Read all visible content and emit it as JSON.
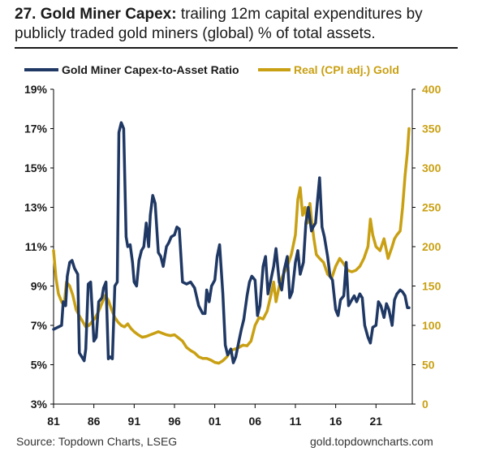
{
  "title": {
    "bold": "27. Gold Miner Capex:",
    "rest": " trailing 12m capital expenditures by publicly traded gold miners (global) % of total assets."
  },
  "footer": {
    "source": "Source: Topdown Charts, LSEG",
    "website": "gold.topdowncharts.com"
  },
  "colors": {
    "capex": "#1f3864",
    "gold": "#c9a013",
    "axis": "#000000"
  },
  "chart_data": {
    "type": "line",
    "x_ticks": [
      "81",
      "86",
      "91",
      "96",
      "01",
      "06",
      "11",
      "16",
      "21"
    ],
    "x_range": [
      1981,
      2025.5
    ],
    "y_left": {
      "min": 3,
      "max": 19,
      "ticks": [
        "3%",
        "5%",
        "7%",
        "9%",
        "11%",
        "13%",
        "15%",
        "17%",
        "19%"
      ]
    },
    "y_right": {
      "min": 0,
      "max": 400,
      "ticks": [
        "0",
        "50",
        "100",
        "150",
        "200",
        "250",
        "300",
        "350",
        "400"
      ]
    },
    "grid": false,
    "legend_position": "top",
    "series": [
      {
        "name": "Gold Miner Capex-to-Asset Ratio",
        "axis": "left",
        "x": [
          1981.0,
          1981.5,
          1982.0,
          1982.2,
          1982.5,
          1982.7,
          1983.0,
          1983.3,
          1983.6,
          1984.0,
          1984.2,
          1984.5,
          1984.8,
          1985.0,
          1985.3,
          1985.6,
          1986.0,
          1986.3,
          1986.6,
          1987.0,
          1987.2,
          1987.5,
          1987.8,
          1988.0,
          1988.3,
          1988.6,
          1988.9,
          1989.1,
          1989.4,
          1989.7,
          1990.0,
          1990.2,
          1990.5,
          1990.8,
          1991.0,
          1991.3,
          1991.6,
          1991.9,
          1992.2,
          1992.5,
          1992.8,
          1993.0,
          1993.3,
          1993.6,
          1994.0,
          1994.3,
          1994.6,
          1995.0,
          1995.3,
          1995.6,
          1996.0,
          1996.3,
          1996.6,
          1997.0,
          1997.5,
          1998.0,
          1998.5,
          1999.0,
          1999.5,
          1999.8,
          2000.0,
          2000.3,
          2000.6,
          2001.0,
          2001.3,
          2001.6,
          2002.0,
          2002.3,
          2002.6,
          2003.0,
          2003.3,
          2003.6,
          2004.0,
          2004.3,
          2004.6,
          2005.0,
          2005.3,
          2005.6,
          2006.0,
          2006.3,
          2006.6,
          2007.0,
          2007.3,
          2007.6,
          2008.0,
          2008.3,
          2008.6,
          2009.0,
          2009.3,
          2009.6,
          2010.0,
          2010.3,
          2010.6,
          2011.0,
          2011.3,
          2011.6,
          2012.0,
          2012.3,
          2012.6,
          2013.0,
          2013.2,
          2013.5,
          2013.8,
          2014.0,
          2014.3,
          2014.6,
          2015.0,
          2015.3,
          2015.6,
          2016.0,
          2016.3,
          2016.6,
          2017.0,
          2017.3,
          2017.6,
          2018.0,
          2018.3,
          2018.6,
          2019.0,
          2019.3,
          2019.6,
          2020.0,
          2020.3,
          2020.6,
          2021.0,
          2021.3,
          2021.6,
          2022.0,
          2022.3,
          2022.6,
          2023.0,
          2023.3,
          2023.6,
          2024.0,
          2024.3,
          2024.6,
          2024.9,
          2025.1
        ],
        "values": [
          6.8,
          6.9,
          7.0,
          8.2,
          8.0,
          9.5,
          10.2,
          10.3,
          9.9,
          9.6,
          5.6,
          5.4,
          5.2,
          5.8,
          9.1,
          9.2,
          6.2,
          6.4,
          8.2,
          8.4,
          8.9,
          9.2,
          5.3,
          5.4,
          5.3,
          9.0,
          9.2,
          16.8,
          17.3,
          17.0,
          11.5,
          11.0,
          11.1,
          10.2,
          9.2,
          9.0,
          10.3,
          10.8,
          11.0,
          12.2,
          11.0,
          12.6,
          13.6,
          13.2,
          10.7,
          10.5,
          10.0,
          11.0,
          11.2,
          11.5,
          11.6,
          12.0,
          11.9,
          9.2,
          9.1,
          9.2,
          8.9,
          8.0,
          7.6,
          7.6,
          8.8,
          8.2,
          9.0,
          9.3,
          10.5,
          11.1,
          8.6,
          6.0,
          5.5,
          5.8,
          5.1,
          5.4,
          6.2,
          6.8,
          7.3,
          8.5,
          9.2,
          9.5,
          9.3,
          7.5,
          8.0,
          10.0,
          10.5,
          8.6,
          9.4,
          10.0,
          10.9,
          9.2,
          8.8,
          9.8,
          10.5,
          8.4,
          8.7,
          10.2,
          10.8,
          9.6,
          10.2,
          12.2,
          13.0,
          11.8,
          12.0,
          12.2,
          13.6,
          14.5,
          12.0,
          11.5,
          10.5,
          9.5,
          9.3,
          7.8,
          7.5,
          8.3,
          8.5,
          10.2,
          8.0,
          8.3,
          8.5,
          8.2,
          8.6,
          8.4,
          7.0,
          6.4,
          6.1,
          6.9,
          7.0,
          8.2,
          8.0,
          7.4,
          8.1,
          7.8,
          7.0,
          8.3,
          8.6,
          8.8,
          8.7,
          8.5,
          7.9,
          7.9
        ],
        "color": "#1f3864"
      },
      {
        "name": "Real (CPI adj.) Gold",
        "axis": "right",
        "x": [
          1981.0,
          1981.3,
          1981.6,
          1982.0,
          1982.3,
          1982.6,
          1983.0,
          1983.4,
          1983.8,
          1984.2,
          1984.6,
          1985.0,
          1985.4,
          1985.8,
          1986.2,
          1986.6,
          1987.0,
          1987.4,
          1987.8,
          1988.2,
          1988.6,
          1989.0,
          1989.4,
          1989.8,
          1990.2,
          1990.6,
          1991.0,
          1991.5,
          1992.0,
          1992.5,
          1993.0,
          1993.5,
          1994.0,
          1994.5,
          1995.0,
          1995.5,
          1996.0,
          1996.5,
          1997.0,
          1997.5,
          1998.0,
          1998.5,
          1999.0,
          1999.5,
          2000.0,
          2000.5,
          2001.0,
          2001.5,
          2002.0,
          2002.5,
          2003.0,
          2003.5,
          2004.0,
          2004.5,
          2005.0,
          2005.5,
          2006.0,
          2006.5,
          2007.0,
          2007.5,
          2008.0,
          2008.3,
          2008.6,
          2009.0,
          2009.5,
          2010.0,
          2010.5,
          2011.0,
          2011.3,
          2011.6,
          2011.9,
          2012.2,
          2012.5,
          2012.8,
          2013.0,
          2013.3,
          2013.6,
          2014.0,
          2014.5,
          2015.0,
          2015.5,
          2016.0,
          2016.5,
          2017.0,
          2017.5,
          2018.0,
          2018.5,
          2019.0,
          2019.5,
          2020.0,
          2020.3,
          2020.6,
          2021.0,
          2021.5,
          2022.0,
          2022.5,
          2023.0,
          2023.3,
          2023.6,
          2024.0,
          2024.3,
          2024.6,
          2024.9,
          2025.1
        ],
        "values": [
          195,
          160,
          140,
          130,
          125,
          155,
          150,
          138,
          120,
          112,
          105,
          98,
          100,
          105,
          110,
          118,
          128,
          138,
          132,
          120,
          110,
          104,
          100,
          98,
          102,
          96,
          92,
          88,
          85,
          86,
          88,
          90,
          92,
          90,
          88,
          87,
          88,
          84,
          80,
          72,
          68,
          65,
          60,
          58,
          58,
          56,
          53,
          52,
          55,
          60,
          68,
          70,
          72,
          75,
          74,
          80,
          100,
          110,
          108,
          118,
          140,
          155,
          130,
          150,
          165,
          175,
          190,
          215,
          260,
          275,
          240,
          250,
          230,
          255,
          235,
          210,
          190,
          185,
          180,
          165,
          160,
          175,
          185,
          178,
          170,
          168,
          170,
          175,
          185,
          200,
          235,
          215,
          200,
          195,
          210,
          185,
          200,
          210,
          215,
          220,
          250,
          290,
          320,
          350
        ],
        "color": "#c9a013"
      }
    ]
  }
}
